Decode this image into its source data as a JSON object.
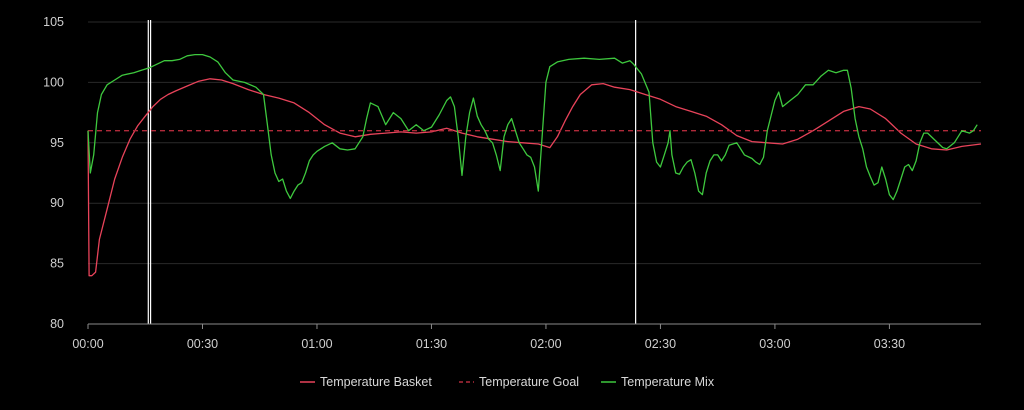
{
  "chart_data": {
    "type": "line",
    "title": "",
    "xlabel": "",
    "ylabel": "",
    "x_unit": "minutes",
    "xlim": [
      0,
      234
    ],
    "ylim": [
      80,
      105
    ],
    "x_ticks": [
      {
        "value": 0,
        "label": "00:00"
      },
      {
        "value": 30,
        "label": "00:30"
      },
      {
        "value": 60,
        "label": "01:00"
      },
      {
        "value": 90,
        "label": "01:30"
      },
      {
        "value": 120,
        "label": "02:00"
      },
      {
        "value": 150,
        "label": "02:30"
      },
      {
        "value": 180,
        "label": "03:00"
      },
      {
        "value": 210,
        "label": "03:30"
      }
    ],
    "y_ticks": [
      {
        "value": 80,
        "label": "80"
      },
      {
        "value": 85,
        "label": "85"
      },
      {
        "value": 90,
        "label": "90"
      },
      {
        "value": 95,
        "label": "95"
      },
      {
        "value": 100,
        "label": "100"
      },
      {
        "value": 105,
        "label": "105"
      }
    ],
    "grid": true,
    "legend_position": "bottom-center",
    "markers": [
      {
        "x": 15.8,
        "color": "#ffffff"
      },
      {
        "x": 16.4,
        "color": "#ffffff"
      },
      {
        "x": 143.5,
        "color": "#ffffff"
      }
    ],
    "series": [
      {
        "name": "Temperature Basket",
        "color": "#e8435a",
        "style": "solid",
        "points": [
          [
            0,
            96
          ],
          [
            0.3,
            84
          ],
          [
            1,
            84
          ],
          [
            2,
            84.3
          ],
          [
            3,
            87
          ],
          [
            5,
            89.5
          ],
          [
            7,
            92
          ],
          [
            9,
            93.8
          ],
          [
            11,
            95.3
          ],
          [
            13,
            96.4
          ],
          [
            15,
            97.2
          ],
          [
            17,
            98
          ],
          [
            19,
            98.6
          ],
          [
            21,
            99
          ],
          [
            23,
            99.3
          ],
          [
            26,
            99.7
          ],
          [
            29,
            100.1
          ],
          [
            32,
            100.3
          ],
          [
            35,
            100.2
          ],
          [
            38,
            99.9
          ],
          [
            42,
            99.4
          ],
          [
            46,
            99
          ],
          [
            50,
            98.7
          ],
          [
            54,
            98.3
          ],
          [
            58,
            97.5
          ],
          [
            62,
            96.5
          ],
          [
            66,
            95.8
          ],
          [
            70,
            95.5
          ],
          [
            74,
            95.7
          ],
          [
            78,
            95.8
          ],
          [
            82,
            95.9
          ],
          [
            86,
            95.8
          ],
          [
            90,
            95.9
          ],
          [
            94,
            96.2
          ],
          [
            98,
            95.8
          ],
          [
            102,
            95.5
          ],
          [
            106,
            95.3
          ],
          [
            110,
            95.1
          ],
          [
            114,
            95
          ],
          [
            118,
            94.9
          ],
          [
            121,
            94.6
          ],
          [
            123,
            95.5
          ],
          [
            125,
            96.8
          ],
          [
            127,
            98
          ],
          [
            129,
            99
          ],
          [
            132,
            99.8
          ],
          [
            135,
            99.9
          ],
          [
            138,
            99.6
          ],
          [
            142,
            99.4
          ],
          [
            146,
            99
          ],
          [
            150,
            98.6
          ],
          [
            154,
            98
          ],
          [
            158,
            97.6
          ],
          [
            162,
            97.2
          ],
          [
            166,
            96.5
          ],
          [
            170,
            95.6
          ],
          [
            174,
            95.1
          ],
          [
            178,
            95
          ],
          [
            182,
            94.9
          ],
          [
            186,
            95.3
          ],
          [
            190,
            96
          ],
          [
            194,
            96.8
          ],
          [
            198,
            97.6
          ],
          [
            202,
            98
          ],
          [
            205,
            97.8
          ],
          [
            209,
            97
          ],
          [
            213,
            95.8
          ],
          [
            217,
            94.9
          ],
          [
            221,
            94.5
          ],
          [
            225,
            94.4
          ],
          [
            229,
            94.7
          ],
          [
            234,
            94.9
          ]
        ]
      },
      {
        "name": "Temperature Goal",
        "color": "#b02a3a",
        "style": "dashed",
        "points": [
          [
            0,
            96
          ],
          [
            234,
            96
          ]
        ]
      },
      {
        "name": "Temperature Mix",
        "color": "#3ec83e",
        "style": "solid",
        "points": [
          [
            0,
            96
          ],
          [
            0.6,
            92.5
          ],
          [
            1.5,
            94
          ],
          [
            2.5,
            97.5
          ],
          [
            3.5,
            99
          ],
          [
            5,
            99.8
          ],
          [
            7,
            100.2
          ],
          [
            9,
            100.6
          ],
          [
            12,
            100.8
          ],
          [
            14,
            101
          ],
          [
            16,
            101.2
          ],
          [
            18,
            101.5
          ],
          [
            20,
            101.8
          ],
          [
            22,
            101.8
          ],
          [
            24,
            101.9
          ],
          [
            26,
            102.2
          ],
          [
            28,
            102.3
          ],
          [
            30,
            102.3
          ],
          [
            32,
            102.1
          ],
          [
            34,
            101.7
          ],
          [
            36,
            100.8
          ],
          [
            38,
            100.2
          ],
          [
            41,
            100
          ],
          [
            44,
            99.6
          ],
          [
            46,
            99
          ],
          [
            47,
            96.5
          ],
          [
            48,
            94
          ],
          [
            49,
            92.5
          ],
          [
            50,
            91.8
          ],
          [
            51,
            92
          ],
          [
            52,
            91
          ],
          [
            53,
            90.4
          ],
          [
            54,
            91
          ],
          [
            55,
            91.5
          ],
          [
            56,
            91.7
          ],
          [
            57,
            92.5
          ],
          [
            58,
            93.5
          ],
          [
            59,
            94
          ],
          [
            60,
            94.3
          ],
          [
            62,
            94.7
          ],
          [
            64,
            95
          ],
          [
            66,
            94.5
          ],
          [
            68,
            94.4
          ],
          [
            70,
            94.5
          ],
          [
            72,
            95.5
          ],
          [
            73,
            97
          ],
          [
            74,
            98.3
          ],
          [
            76,
            98
          ],
          [
            78,
            96.5
          ],
          [
            80,
            97.5
          ],
          [
            82,
            97
          ],
          [
            84,
            96
          ],
          [
            86,
            96.5
          ],
          [
            88,
            96
          ],
          [
            90,
            96.3
          ],
          [
            92,
            97.3
          ],
          [
            94,
            98.5
          ],
          [
            95,
            98.8
          ],
          [
            96,
            98
          ],
          [
            97,
            95.5
          ],
          [
            98,
            92.3
          ],
          [
            99,
            95.5
          ],
          [
            100,
            97.5
          ],
          [
            101,
            98.7
          ],
          [
            102,
            97.2
          ],
          [
            103,
            96.5
          ],
          [
            104,
            96
          ],
          [
            105,
            95.3
          ],
          [
            106,
            95
          ],
          [
            107,
            94
          ],
          [
            108,
            92.7
          ],
          [
            109,
            95.5
          ],
          [
            110,
            96.5
          ],
          [
            111,
            97
          ],
          [
            112,
            96
          ],
          [
            113,
            95
          ],
          [
            114,
            94.5
          ],
          [
            115,
            94
          ],
          [
            116,
            93.8
          ],
          [
            117,
            93
          ],
          [
            117.5,
            92
          ],
          [
            118,
            91
          ],
          [
            119,
            95.5
          ],
          [
            120,
            100
          ],
          [
            121,
            101.3
          ],
          [
            123,
            101.7
          ],
          [
            126,
            101.9
          ],
          [
            130,
            102
          ],
          [
            134,
            101.9
          ],
          [
            138,
            102
          ],
          [
            140,
            101.6
          ],
          [
            142,
            101.8
          ],
          [
            143,
            101.5
          ],
          [
            145,
            100.7
          ],
          [
            147,
            99.2
          ],
          [
            148,
            95
          ],
          [
            149,
            93.4
          ],
          [
            150,
            93
          ],
          [
            151,
            94
          ],
          [
            152,
            95
          ],
          [
            152.5,
            96
          ],
          [
            153,
            94
          ],
          [
            154,
            92.5
          ],
          [
            155,
            92.4
          ],
          [
            156,
            93
          ],
          [
            157,
            93.4
          ],
          [
            158,
            93.6
          ],
          [
            159,
            92.5
          ],
          [
            160,
            91
          ],
          [
            161,
            90.7
          ],
          [
            162,
            92.5
          ],
          [
            163,
            93.5
          ],
          [
            164,
            94
          ],
          [
            165,
            94
          ],
          [
            166,
            93.5
          ],
          [
            167,
            94
          ],
          [
            168,
            94.8
          ],
          [
            170,
            95
          ],
          [
            172,
            94
          ],
          [
            174,
            93.7
          ],
          [
            175,
            93.4
          ],
          [
            176,
            93.2
          ],
          [
            177,
            93.8
          ],
          [
            178,
            96
          ],
          [
            180,
            98.5
          ],
          [
            181,
            99.2
          ],
          [
            182,
            98
          ],
          [
            184,
            98.5
          ],
          [
            186,
            99
          ],
          [
            188,
            99.8
          ],
          [
            190,
            99.8
          ],
          [
            192,
            100.5
          ],
          [
            194,
            101
          ],
          [
            196,
            100.8
          ],
          [
            198,
            101
          ],
          [
            199,
            101
          ],
          [
            200,
            99.5
          ],
          [
            201,
            97
          ],
          [
            202,
            95.5
          ],
          [
            203,
            94.5
          ],
          [
            204,
            93
          ],
          [
            205,
            92.2
          ],
          [
            206,
            91.5
          ],
          [
            207,
            91.7
          ],
          [
            208,
            93
          ],
          [
            209,
            92
          ],
          [
            210,
            90.7
          ],
          [
            211,
            90.3
          ],
          [
            212,
            91
          ],
          [
            213,
            92
          ],
          [
            214,
            93
          ],
          [
            215,
            93.2
          ],
          [
            216,
            92.7
          ],
          [
            217,
            93.5
          ],
          [
            218,
            95
          ],
          [
            219,
            95.8
          ],
          [
            220,
            95.8
          ],
          [
            222,
            95.2
          ],
          [
            224,
            94.6
          ],
          [
            225,
            94.5
          ],
          [
            227,
            95
          ],
          [
            229,
            96
          ],
          [
            231,
            95.8
          ],
          [
            232,
            96
          ],
          [
            233,
            96.5
          ]
        ]
      }
    ]
  }
}
